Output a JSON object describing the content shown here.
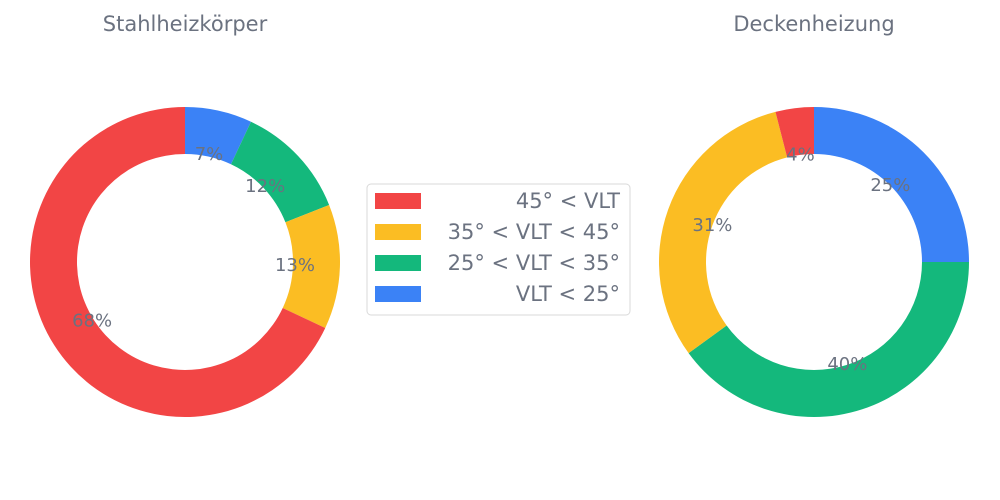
{
  "chart_data": [
    {
      "type": "pie",
      "variant": "donut",
      "title": "Stahlheizkörper",
      "start": "top",
      "direction": "clockwise",
      "slices": [
        {
          "label": "VLT < 25°",
          "value": 7,
          "display": "7%",
          "color": "#3b82f6"
        },
        {
          "label": "25° < VLT < 35°",
          "value": 12,
          "display": "12%",
          "color": "#14b87c"
        },
        {
          "label": "35° < VLT < 45°",
          "value": 13,
          "display": "13%",
          "color": "#fbbd23"
        },
        {
          "label": "45° < VLT",
          "value": 68,
          "display": "68%",
          "color": "#f24545"
        }
      ]
    },
    {
      "type": "pie",
      "variant": "donut",
      "title": "Deckenheizung",
      "start": "top",
      "direction": "clockwise",
      "slices": [
        {
          "label": "VLT < 25°",
          "value": 25,
          "display": "25%",
          "color": "#3b82f6"
        },
        {
          "label": "25° < VLT < 35°",
          "value": 40,
          "display": "40%",
          "color": "#14b87c"
        },
        {
          "label": "35° < VLT < 45°",
          "value": 31,
          "display": "31%",
          "color": "#fbbd23"
        },
        {
          "label": "45° < VLT",
          "value": 4,
          "display": "4%",
          "color": "#f24545"
        }
      ]
    }
  ],
  "legend": {
    "placement": "center",
    "entries": [
      {
        "label": "45° < VLT",
        "color": "#f24545"
      },
      {
        "label": "35° < VLT < 45°",
        "color": "#fbbd23"
      },
      {
        "label": "25° < VLT < 35°",
        "color": "#14b87c"
      },
      {
        "label": "VLT < 25°",
        "color": "#3b82f6"
      }
    ]
  }
}
